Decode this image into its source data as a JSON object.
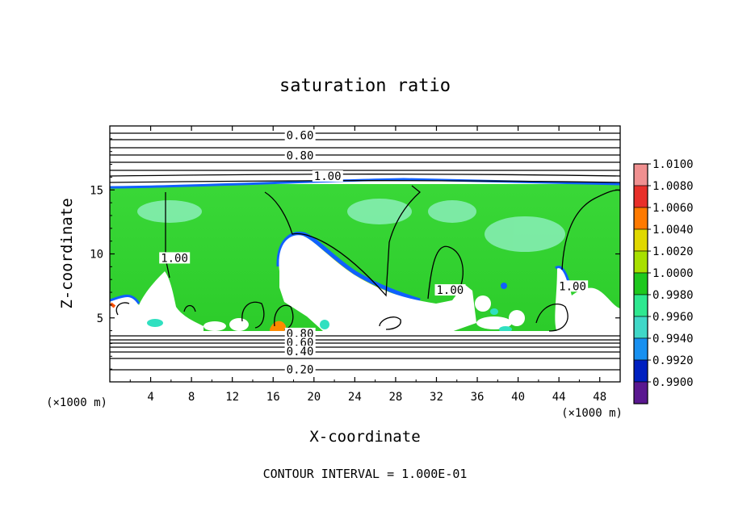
{
  "chart_data": {
    "type": "heatmap",
    "title": "saturation ratio",
    "xlabel": "X-coordinate",
    "ylabel": "Z-coordinate",
    "x_unit": "(×1000 m)",
    "y_unit": "(×1000 m)",
    "x_ticks": [
      "4",
      "8",
      "12",
      "16",
      "20",
      "24",
      "28",
      "32",
      "36",
      "40",
      "44",
      "48"
    ],
    "y_ticks": [
      "5",
      "10",
      "15"
    ],
    "xlim": [
      0,
      50
    ],
    "ylim": [
      0,
      20
    ],
    "footer": "CONTOUR INTERVAL = 1.000E-01",
    "contour_labels": [
      {
        "text": "0.60",
        "x": 17.3,
        "z": 19.1
      },
      {
        "text": "0.80",
        "x": 17.3,
        "z": 17.5
      },
      {
        "text": "1.00",
        "x": 20.0,
        "z": 15.9
      },
      {
        "text": "1.00",
        "x": 5.0,
        "z": 9.5
      },
      {
        "text": "1.00",
        "x": 32.0,
        "z": 7.0
      },
      {
        "text": "1.00",
        "x": 44.0,
        "z": 7.3
      },
      {
        "text": "0.80",
        "x": 17.3,
        "z": 3.6
      },
      {
        "text": "0.60",
        "x": 17.3,
        "z": 2.9
      },
      {
        "text": "0.40",
        "x": 17.3,
        "z": 2.2
      },
      {
        "text": "0.20",
        "x": 17.3,
        "z": 0.8
      }
    ],
    "colorbar": {
      "labels": [
        "1.0100",
        "1.0080",
        "1.0060",
        "1.0040",
        "1.0020",
        "1.0000",
        "0.9980",
        "0.9960",
        "0.9940",
        "0.9920",
        "0.9900"
      ],
      "colors": [
        "#f09090",
        "#e8302a",
        "#ff7a00",
        "#e0d800",
        "#a8e000",
        "#1ec81e",
        "#2ee890",
        "#40d8c8",
        "#1890f0",
        "#0020c0",
        "#5a1890"
      ]
    },
    "grid": false
  }
}
